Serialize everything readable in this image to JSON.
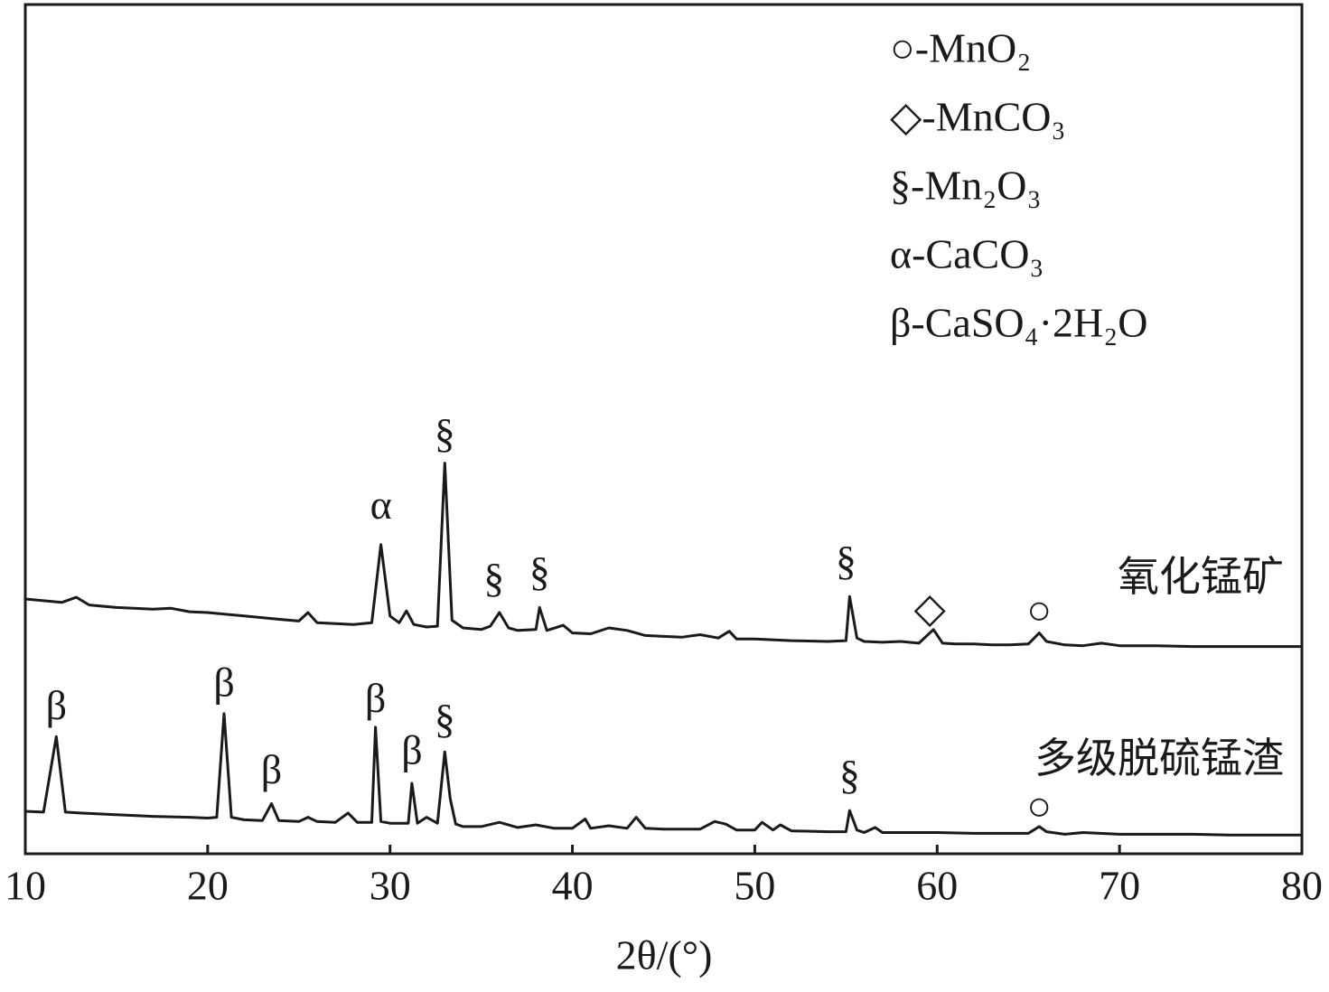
{
  "chart_data": {
    "type": "line",
    "xlabel": "2θ/(°)",
    "xlim": [
      10,
      80
    ],
    "xticks": [
      10,
      20,
      30,
      40,
      50,
      60,
      70,
      80
    ],
    "ylim": [
      0,
      100
    ],
    "legend_entries": [
      "○-MnO₂",
      "◇-MnCO₃",
      "§-Mn₂O₃",
      "α-CaCO₃",
      "β-CaSO₄·2H₂O"
    ],
    "series": [
      {
        "name": "氧化锰矿",
        "color": "#1a1a1a",
        "x": [
          10,
          11,
          12,
          12.8,
          13.5,
          15,
          17,
          18,
          19,
          20,
          22,
          24,
          25,
          25.5,
          26,
          27,
          28,
          29,
          29.5,
          30,
          30.5,
          30.9,
          31.3,
          32,
          32.6,
          33,
          33.4,
          34,
          35,
          35.5,
          36,
          36.5,
          37,
          38,
          38.2,
          38.6,
          39.5,
          40,
          41,
          42,
          43,
          44,
          45,
          46,
          47,
          48,
          48.6,
          49,
          50,
          52,
          54,
          55,
          55.2,
          55.6,
          56,
          57,
          58,
          59,
          59.8,
          60.3,
          61,
          62,
          63,
          64,
          65,
          65.6,
          66,
          67,
          68,
          69,
          70,
          72,
          74,
          76,
          78,
          80
        ],
        "values": [
          30.0,
          29.8,
          29.6,
          30.2,
          29.3,
          29.0,
          28.8,
          28.9,
          28.5,
          28.4,
          28.0,
          27.6,
          27.4,
          28.4,
          27.2,
          27.1,
          27.0,
          27.2,
          36.4,
          28.0,
          27.2,
          28.6,
          27.0,
          26.7,
          26.8,
          46.0,
          27.5,
          26.6,
          26.4,
          26.8,
          28.4,
          26.6,
          26.3,
          26.4,
          29.0,
          26.3,
          26.9,
          26.0,
          25.9,
          26.6,
          26.3,
          25.7,
          25.6,
          25.5,
          25.8,
          25.4,
          26.2,
          25.3,
          25.3,
          25.1,
          25.0,
          25.1,
          30.3,
          25.4,
          25.0,
          24.9,
          25.0,
          24.8,
          26.4,
          24.8,
          24.7,
          24.7,
          24.6,
          24.6,
          24.7,
          26.0,
          25.0,
          24.6,
          24.5,
          24.8,
          24.5,
          24.5,
          24.4,
          24.4,
          24.4,
          24.4
        ]
      },
      {
        "name": "多级脱硫锰渣",
        "color": "#1a1a1a",
        "x": [
          10,
          11,
          11.7,
          12.2,
          13,
          15,
          17,
          19,
          20,
          20.5,
          20.9,
          21.3,
          22,
          23,
          23.5,
          23.9,
          25,
          25.5,
          26,
          27,
          27.7,
          28.2,
          29,
          29.2,
          29.5,
          30,
          31,
          31.2,
          31.5,
          32,
          32.6,
          33,
          33.3,
          33.6,
          34,
          35,
          36,
          37,
          38,
          39,
          40,
          40.7,
          41,
          42,
          43,
          43.5,
          44,
          45,
          46,
          47,
          47.8,
          48.4,
          49,
          50,
          50.4,
          51,
          51.4,
          52,
          54,
          55,
          55.2,
          55.6,
          56,
          56.6,
          57,
          58,
          60,
          62,
          64,
          65,
          65.6,
          66,
          67,
          68,
          70,
          72,
          74,
          76,
          78,
          80
        ],
        "values": [
          5.0,
          4.9,
          13.8,
          4.9,
          4.8,
          4.6,
          4.4,
          4.3,
          4.2,
          4.3,
          16.5,
          4.3,
          4.0,
          3.9,
          5.9,
          3.9,
          3.8,
          4.3,
          3.8,
          3.7,
          4.8,
          3.7,
          3.7,
          14.9,
          3.8,
          3.6,
          3.6,
          8.3,
          3.6,
          4.3,
          3.6,
          12.0,
          6.5,
          3.5,
          3.2,
          3.2,
          3.7,
          3.1,
          3.4,
          3.0,
          3.0,
          4.1,
          3.0,
          3.3,
          3.0,
          4.3,
          3.0,
          2.9,
          2.9,
          2.9,
          3.8,
          3.5,
          2.8,
          2.8,
          3.7,
          2.8,
          3.4,
          2.7,
          2.6,
          2.6,
          5.1,
          2.8,
          2.5,
          3.1,
          2.5,
          2.5,
          2.5,
          2.4,
          2.4,
          2.4,
          3.2,
          2.6,
          2.3,
          2.5,
          2.3,
          2.3,
          2.3,
          2.2,
          2.2,
          2.2
        ]
      }
    ],
    "annotations": [
      {
        "text": "α",
        "x": 29.5,
        "y": 40.6
      },
      {
        "text": "§",
        "x": 33,
        "y": 49
      },
      {
        "text": "§",
        "x": 35.7,
        "y": 32
      },
      {
        "text": "§",
        "x": 38.2,
        "y": 32.7
      },
      {
        "text": "§",
        "x": 55,
        "y": 34
      },
      {
        "text": "◇",
        "x": 59.6,
        "y": 28.4
      },
      {
        "text": "○",
        "x": 65.6,
        "y": 28.2
      },
      {
        "text": "β",
        "x": 11.7,
        "y": 17
      },
      {
        "text": "β",
        "x": 20.9,
        "y": 19.7
      },
      {
        "text": "β",
        "x": 23.5,
        "y": 9.4
      },
      {
        "text": "β",
        "x": 29.2,
        "y": 17.8
      },
      {
        "text": "β",
        "x": 31.2,
        "y": 11.7
      },
      {
        "text": "§",
        "x": 33,
        "y": 15.4
      },
      {
        "text": "§",
        "x": 55.2,
        "y": 8.8
      },
      {
        "text": "○",
        "x": 65.6,
        "y": 5.1
      }
    ]
  }
}
